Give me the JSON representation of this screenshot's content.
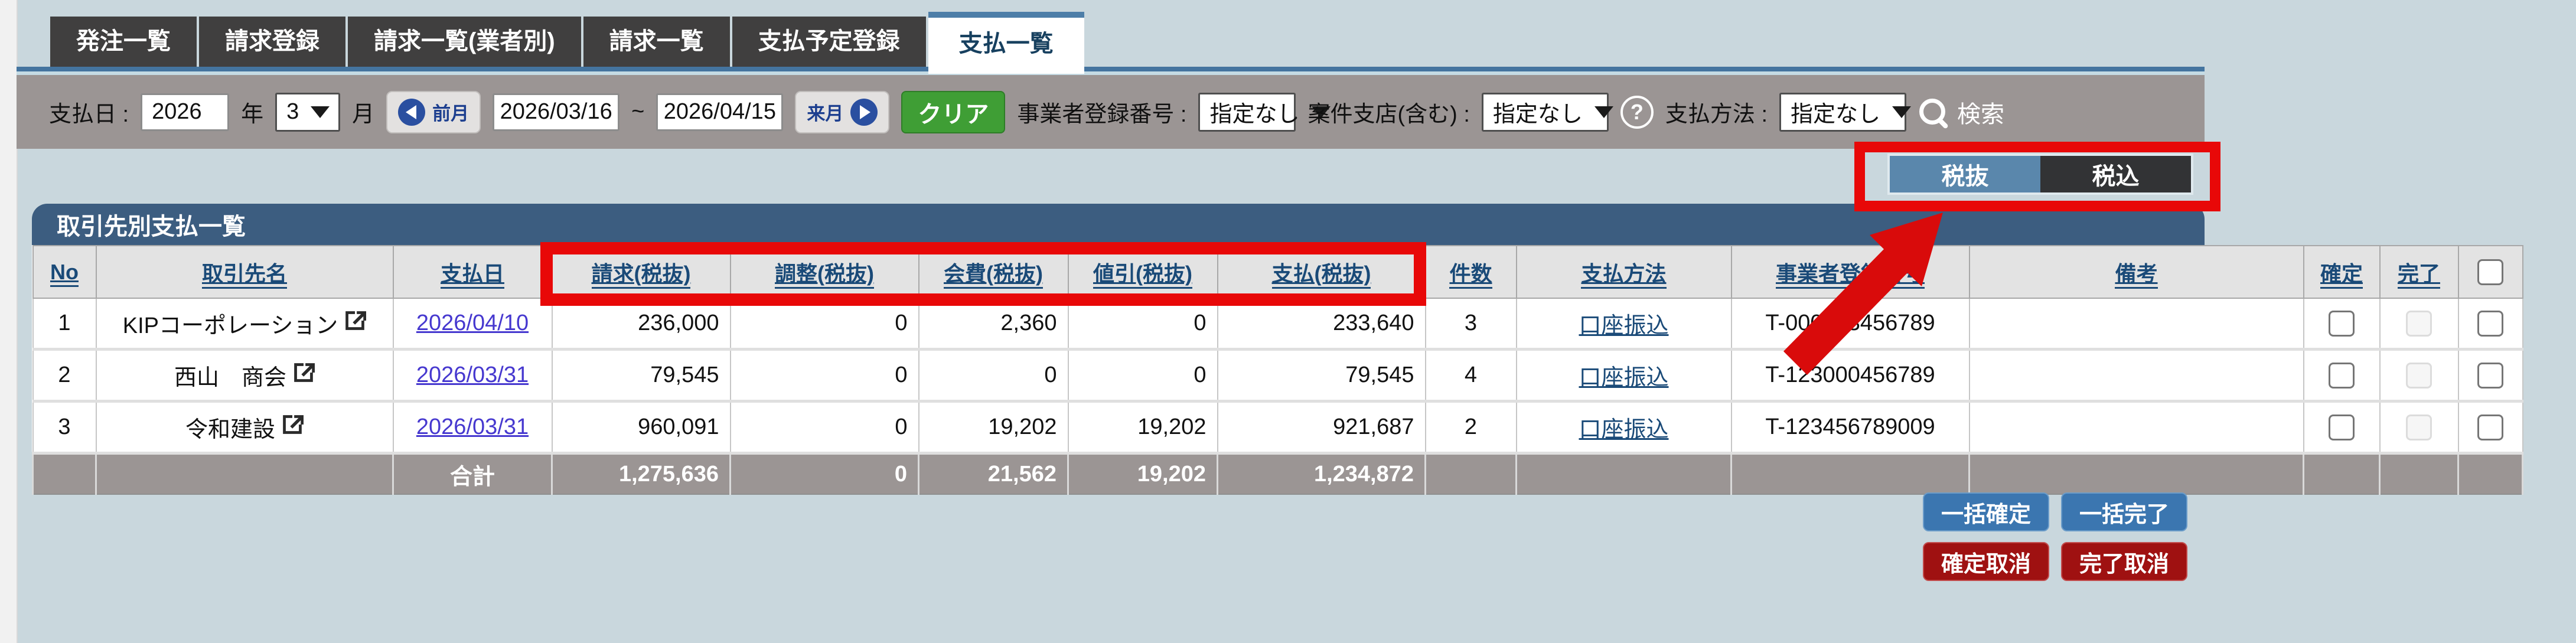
{
  "tabs": [
    {
      "label": "発注一覧",
      "active": false
    },
    {
      "label": "請求登録",
      "active": false
    },
    {
      "label": "請求一覧(業者別)",
      "active": false
    },
    {
      "label": "請求一覧",
      "active": false
    },
    {
      "label": "支払予定登録",
      "active": false
    },
    {
      "label": "支払一覧",
      "active": true
    }
  ],
  "filter": {
    "payment_date_label": "支払日 :",
    "year_value": "2026",
    "year_label": "年",
    "month_value": "3",
    "month_label": "月",
    "prev_month_label": "前月",
    "date_from": "2026/03/16",
    "tilde": "~",
    "date_to": "2026/04/15",
    "next_month_label": "来月",
    "clear_label": "クリア",
    "biz_reg_label": "事業者登録番号 :",
    "biz_reg_value": "指定なし",
    "branch_label": "案件支店(含む) :",
    "branch_value": "指定なし",
    "method_label": "支払方法 :",
    "method_value": "指定なし",
    "search_label": "検索"
  },
  "toggle": {
    "tax_excluded": "税抜",
    "tax_included": "税込",
    "active": "税抜"
  },
  "section": {
    "title": "取引先別支払一覧"
  },
  "table": {
    "columns": [
      {
        "key": "no",
        "label": "No"
      },
      {
        "key": "name",
        "label": "取引先名"
      },
      {
        "key": "pay_date",
        "label": "支払日"
      },
      {
        "key": "invoice",
        "label": "請求(税抜)",
        "highlighted": true
      },
      {
        "key": "adjust",
        "label": "調整(税抜)",
        "highlighted": true
      },
      {
        "key": "fee",
        "label": "会費(税抜)",
        "highlighted": true
      },
      {
        "key": "discount",
        "label": "値引(税抜)",
        "highlighted": true
      },
      {
        "key": "payment",
        "label": "支払(税抜)",
        "highlighted": true
      },
      {
        "key": "count",
        "label": "件数"
      },
      {
        "key": "method",
        "label": "支払方法"
      },
      {
        "key": "reg_no",
        "label": "事業者登録番号"
      },
      {
        "key": "note",
        "label": "備考"
      },
      {
        "key": "confirm",
        "label": "確定"
      },
      {
        "key": "done",
        "label": "完了"
      },
      {
        "key": "select",
        "label": ""
      }
    ],
    "rows": [
      {
        "no": "1",
        "name": "KIPコーポレーション",
        "pay_date": "2026/04/10",
        "invoice": "236,000",
        "adjust": "0",
        "fee": "2,360",
        "discount": "0",
        "payment": "233,640",
        "count": "3",
        "method": "口座振込",
        "reg_no": "T-000123456789",
        "note": "",
        "confirm_checked": false,
        "done_checked": false,
        "selected": false
      },
      {
        "no": "2",
        "name": "西山　商会",
        "pay_date": "2026/03/31",
        "invoice": "79,545",
        "adjust": "0",
        "fee": "0",
        "discount": "0",
        "payment": "79,545",
        "count": "4",
        "method": "口座振込",
        "reg_no": "T-123000456789",
        "note": "",
        "confirm_checked": false,
        "done_checked": false,
        "selected": false
      },
      {
        "no": "3",
        "name": "令和建設",
        "pay_date": "2026/03/31",
        "invoice": "960,091",
        "adjust": "0",
        "fee": "19,202",
        "discount": "19,202",
        "payment": "921,687",
        "count": "2",
        "method": "口座振込",
        "reg_no": "T-123456789009",
        "note": "",
        "confirm_checked": false,
        "done_checked": false,
        "selected": false
      }
    ],
    "total": {
      "label": "合計",
      "invoice": "1,275,636",
      "adjust": "0",
      "fee": "21,562",
      "discount": "19,202",
      "payment": "1,234,872"
    }
  },
  "actions": {
    "bulk_confirm": "一括確定",
    "bulk_done": "一括完了",
    "confirm_cancel": "確定取消",
    "done_cancel": "完了取消"
  },
  "annotation_color": "#e80808"
}
